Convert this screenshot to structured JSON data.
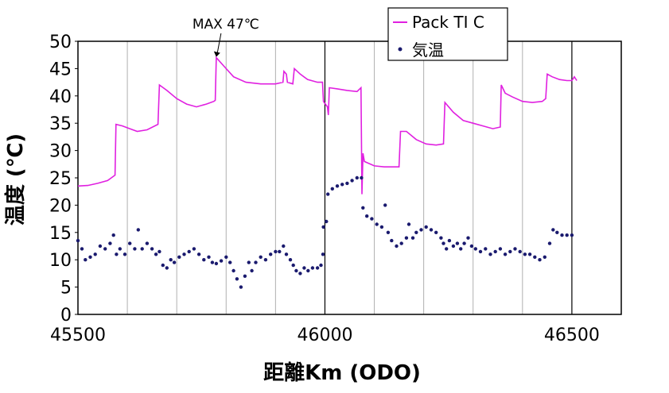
{
  "chart_data": {
    "type": "line",
    "xlabel": "距離Km (ODO)",
    "ylabel": "温度 (℃)",
    "xlim": [
      45500,
      46600
    ],
    "ylim": [
      0,
      50
    ],
    "x_ticks": [
      "45500",
      "46000",
      "46500"
    ],
    "y_ticks": [
      "0",
      "5",
      "10",
      "15",
      "20",
      "25",
      "30",
      "35",
      "40",
      "45",
      "50"
    ],
    "grid": "vertical-major",
    "legend_position": "top-right",
    "colors": {
      "pack": "#e020e0",
      "ambient": "#1a1a6e"
    },
    "annotation": {
      "text": "MAX 47℃",
      "x": 45780,
      "y": 47
    },
    "series": [
      {
        "name": "Pack TI C",
        "style": "line",
        "points": [
          [
            45500,
            23.5
          ],
          [
            45520,
            23.6
          ],
          [
            45540,
            24
          ],
          [
            45560,
            24.5
          ],
          [
            45575,
            25.5
          ],
          [
            45577,
            34.8
          ],
          [
            45590,
            34.5
          ],
          [
            45605,
            34
          ],
          [
            45620,
            33.5
          ],
          [
            45640,
            33.8
          ],
          [
            45662,
            34.8
          ],
          [
            45665,
            42
          ],
          [
            45680,
            41
          ],
          [
            45700,
            39.5
          ],
          [
            45720,
            38.5
          ],
          [
            45740,
            38
          ],
          [
            45760,
            38.5
          ],
          [
            45775,
            39
          ],
          [
            45778,
            39.2
          ],
          [
            45780,
            47
          ],
          [
            45795,
            45.5
          ],
          [
            45815,
            43.5
          ],
          [
            45840,
            42.5
          ],
          [
            45870,
            42.2
          ],
          [
            45900,
            42.2
          ],
          [
            45915,
            42.5
          ],
          [
            45917,
            44.5
          ],
          [
            45922,
            44
          ],
          [
            45924,
            42.5
          ],
          [
            45935,
            42.2
          ],
          [
            45938,
            45
          ],
          [
            45950,
            44
          ],
          [
            45965,
            43
          ],
          [
            45985,
            42.5
          ],
          [
            45995,
            42.5
          ],
          [
            45997,
            39
          ],
          [
            46005,
            38
          ],
          [
            46007,
            36.5
          ],
          [
            46009,
            41.5
          ],
          [
            46025,
            41.3
          ],
          [
            46045,
            41
          ],
          [
            46065,
            40.8
          ],
          [
            46073,
            41.5
          ],
          [
            46075,
            22
          ],
          [
            46077,
            29.5
          ],
          [
            46080,
            28
          ],
          [
            46100,
            27.2
          ],
          [
            46120,
            27
          ],
          [
            46140,
            27
          ],
          [
            46150,
            27
          ],
          [
            46153,
            33.5
          ],
          [
            46165,
            33.5
          ],
          [
            46185,
            32
          ],
          [
            46205,
            31.2
          ],
          [
            46225,
            31
          ],
          [
            46240,
            31.2
          ],
          [
            46243,
            38.8
          ],
          [
            46260,
            37
          ],
          [
            46280,
            35.5
          ],
          [
            46300,
            35
          ],
          [
            46320,
            34.5
          ],
          [
            46340,
            34
          ],
          [
            46355,
            34.3
          ],
          [
            46357,
            42
          ],
          [
            46365,
            40.5
          ],
          [
            46380,
            39.8
          ],
          [
            46400,
            39
          ],
          [
            46420,
            38.8
          ],
          [
            46440,
            39
          ],
          [
            46447,
            39.5
          ],
          [
            46450,
            44
          ],
          [
            46460,
            43.5
          ],
          [
            46475,
            43
          ],
          [
            46490,
            42.8
          ],
          [
            46500,
            42.8
          ],
          [
            46505,
            43.5
          ],
          [
            46510,
            42.8
          ]
        ]
      },
      {
        "name": "気温",
        "style": "markers",
        "points": [
          [
            45500,
            13.5
          ],
          [
            45508,
            12
          ],
          [
            45515,
            10
          ],
          [
            45525,
            10.5
          ],
          [
            45535,
            11
          ],
          [
            45545,
            12.5
          ],
          [
            45555,
            12
          ],
          [
            45565,
            13
          ],
          [
            45572,
            14.5
          ],
          [
            45578,
            11
          ],
          [
            45585,
            12
          ],
          [
            45595,
            11
          ],
          [
            45605,
            13
          ],
          [
            45615,
            12
          ],
          [
            45622,
            15.5
          ],
          [
            45630,
            12
          ],
          [
            45640,
            13
          ],
          [
            45650,
            12
          ],
          [
            45658,
            11
          ],
          [
            45665,
            11.5
          ],
          [
            45672,
            9
          ],
          [
            45680,
            8.5
          ],
          [
            45688,
            10
          ],
          [
            45695,
            9.5
          ],
          [
            45705,
            10.5
          ],
          [
            45715,
            11
          ],
          [
            45725,
            11.5
          ],
          [
            45735,
            12
          ],
          [
            45745,
            11
          ],
          [
            45755,
            10
          ],
          [
            45765,
            10.5
          ],
          [
            45772,
            9.5
          ],
          [
            45780,
            9.3
          ],
          [
            45790,
            9.8
          ],
          [
            45800,
            10.5
          ],
          [
            45808,
            9.5
          ],
          [
            45815,
            8
          ],
          [
            45822,
            6.5
          ],
          [
            45830,
            5
          ],
          [
            45838,
            7
          ],
          [
            45846,
            9.5
          ],
          [
            45852,
            8
          ],
          [
            45860,
            9.5
          ],
          [
            45870,
            10.5
          ],
          [
            45880,
            10
          ],
          [
            45890,
            11
          ],
          [
            45900,
            11.5
          ],
          [
            45908,
            11.5
          ],
          [
            45916,
            12.5
          ],
          [
            45922,
            11
          ],
          [
            45930,
            10
          ],
          [
            45936,
            9
          ],
          [
            45942,
            8
          ],
          [
            45950,
            7.5
          ],
          [
            45958,
            8.5
          ],
          [
            45966,
            8
          ],
          [
            45975,
            8.5
          ],
          [
            45985,
            8.5
          ],
          [
            45992,
            9
          ],
          [
            45996,
            11
          ],
          [
            45997,
            16
          ],
          [
            46003,
            17
          ],
          [
            46006,
            22
          ],
          [
            46015,
            23
          ],
          [
            46025,
            23.5
          ],
          [
            46035,
            23.8
          ],
          [
            46045,
            24
          ],
          [
            46055,
            24.5
          ],
          [
            46065,
            25
          ],
          [
            46074,
            25
          ],
          [
            46077,
            19.5
          ],
          [
            46085,
            18
          ],
          [
            46095,
            17.5
          ],
          [
            46105,
            16.5
          ],
          [
            46115,
            16
          ],
          [
            46122,
            20
          ],
          [
            46128,
            15
          ],
          [
            46135,
            13.5
          ],
          [
            46145,
            12.5
          ],
          [
            46155,
            13
          ],
          [
            46165,
            14
          ],
          [
            46170,
            16.5
          ],
          [
            46178,
            14
          ],
          [
            46185,
            15
          ],
          [
            46195,
            15.5
          ],
          [
            46205,
            16
          ],
          [
            46215,
            15.5
          ],
          [
            46225,
            15
          ],
          [
            46235,
            14
          ],
          [
            46240,
            13
          ],
          [
            46246,
            12
          ],
          [
            46252,
            13.5
          ],
          [
            46260,
            12.5
          ],
          [
            46268,
            13
          ],
          [
            46275,
            12
          ],
          [
            46282,
            13
          ],
          [
            46290,
            14
          ],
          [
            46297,
            12.5
          ],
          [
            46305,
            12
          ],
          [
            46315,
            11.5
          ],
          [
            46325,
            12
          ],
          [
            46335,
            11
          ],
          [
            46345,
            11.5
          ],
          [
            46355,
            12
          ],
          [
            46365,
            11
          ],
          [
            46375,
            11.5
          ],
          [
            46385,
            12
          ],
          [
            46395,
            11.5
          ],
          [
            46405,
            11
          ],
          [
            46415,
            11
          ],
          [
            46425,
            10.5
          ],
          [
            46435,
            10
          ],
          [
            46445,
            10.5
          ],
          [
            46455,
            13
          ],
          [
            46462,
            15.5
          ],
          [
            46470,
            15
          ],
          [
            46480,
            14.5
          ],
          [
            46490,
            14.5
          ],
          [
            46500,
            14.5
          ]
        ]
      }
    ]
  }
}
